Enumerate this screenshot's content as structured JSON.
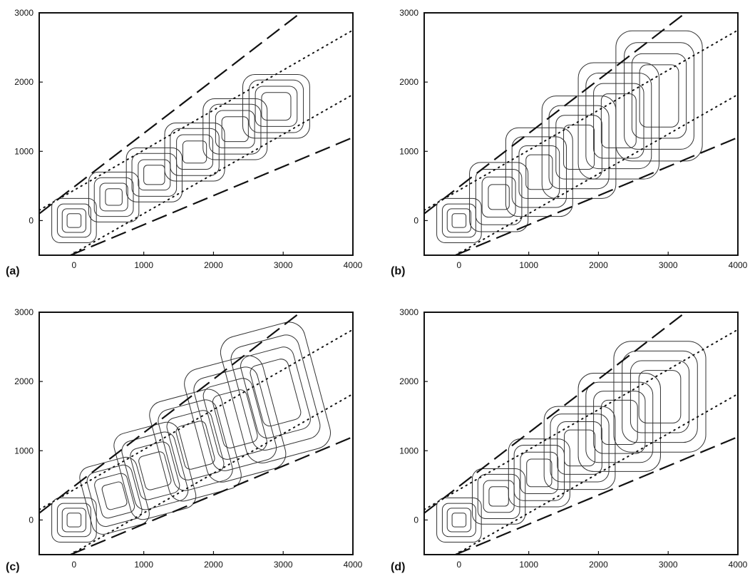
{
  "chart_data": [
    {
      "type": "contour",
      "panel_label": "(a)",
      "xlim": [
        -500,
        4000
      ],
      "ylim": [
        -500,
        3000
      ],
      "xticks": [
        "0",
        "1000",
        "2000",
        "3000",
        "4000"
      ],
      "yticks": [
        "0",
        "1000",
        "2000",
        "3000"
      ],
      "dashed_lines": [
        {
          "from": [
            -500,
            100
          ],
          "to": [
            3250,
            3000
          ]
        },
        {
          "from": [
            -50,
            -500
          ],
          "to": [
            4000,
            1200
          ]
        }
      ],
      "dotted_lines": [
        {
          "from": [
            -500,
            150
          ],
          "to": [
            4000,
            2750
          ]
        },
        {
          "from": [
            -50,
            -500
          ],
          "to": [
            4000,
            1820
          ]
        }
      ],
      "puffs": [
        {
          "x": 0,
          "y": 0,
          "rx": [
            100,
            170,
            240,
            320
          ],
          "ry": [
            100,
            170,
            240,
            320
          ],
          "rot": 0
        },
        {
          "x": 570,
          "y": 340,
          "rx": [
            120,
            200,
            280,
            360
          ],
          "ry": [
            120,
            200,
            280,
            360
          ],
          "rot": 0
        },
        {
          "x": 1150,
          "y": 660,
          "rx": [
            150,
            230,
            320,
            400
          ],
          "ry": [
            140,
            220,
            310,
            390
          ],
          "rot": 0
        },
        {
          "x": 1730,
          "y": 990,
          "rx": [
            170,
            260,
            350,
            430
          ],
          "ry": [
            160,
            250,
            340,
            420
          ],
          "rot": 0
        },
        {
          "x": 2310,
          "y": 1320,
          "rx": [
            190,
            280,
            370,
            460
          ],
          "ry": [
            180,
            270,
            360,
            440
          ],
          "rot": 0
        },
        {
          "x": 2900,
          "y": 1650,
          "rx": [
            210,
            300,
            390,
            480
          ],
          "ry": [
            200,
            290,
            380,
            460
          ],
          "rot": 0
        }
      ]
    },
    {
      "type": "contour",
      "panel_label": "(b)",
      "xlim": [
        -500,
        4000
      ],
      "ylim": [
        -500,
        3000
      ],
      "xticks": [
        "0",
        "1000",
        "2000",
        "3000",
        "4000"
      ],
      "yticks": [
        "0",
        "1000",
        "2000",
        "3000"
      ],
      "dashed_lines": [
        {
          "from": [
            -500,
            100
          ],
          "to": [
            3250,
            3000
          ]
        },
        {
          "from": [
            -50,
            -500
          ],
          "to": [
            4000,
            1200
          ]
        }
      ],
      "dotted_lines": [
        {
          "from": [
            -500,
            150
          ],
          "to": [
            4000,
            2750
          ]
        },
        {
          "from": [
            -50,
            -500
          ],
          "to": [
            4000,
            1820
          ]
        }
      ],
      "puffs": [
        {
          "x": 0,
          "y": 0,
          "rx": [
            100,
            170,
            240,
            320
          ],
          "ry": [
            100,
            170,
            240,
            320
          ],
          "rot": 0
        },
        {
          "x": 570,
          "y": 340,
          "rx": [
            150,
            240,
            330,
            420
          ],
          "ry": [
            180,
            290,
            400,
            500
          ],
          "rot": 0
        },
        {
          "x": 1150,
          "y": 700,
          "rx": [
            190,
            290,
            390,
            480
          ],
          "ry": [
            250,
            380,
            510,
            640
          ],
          "rot": 0
        },
        {
          "x": 1720,
          "y": 1060,
          "rx": [
            220,
            330,
            430,
            530
          ],
          "ry": [
            320,
            460,
            600,
            740
          ],
          "rot": 0
        },
        {
          "x": 2290,
          "y": 1440,
          "rx": [
            250,
            360,
            470,
            580
          ],
          "ry": [
            390,
            540,
            690,
            840
          ],
          "rot": 0
        },
        {
          "x": 2870,
          "y": 1800,
          "rx": [
            280,
            390,
            500,
            620
          ],
          "ry": [
            450,
            610,
            770,
            940
          ],
          "rot": 0
        }
      ]
    },
    {
      "type": "contour",
      "panel_label": "(c)",
      "xlim": [
        -500,
        4000
      ],
      "ylim": [
        -500,
        3000
      ],
      "xticks": [
        "0",
        "1000",
        "2000",
        "3000",
        "4000"
      ],
      "yticks": [
        "0",
        "1000",
        "2000",
        "3000"
      ],
      "dashed_lines": [
        {
          "from": [
            -500,
            100
          ],
          "to": [
            3250,
            3000
          ]
        },
        {
          "from": [
            -50,
            -500
          ],
          "to": [
            4000,
            1200
          ]
        }
      ],
      "dotted_lines": [
        {
          "from": [
            -500,
            150
          ],
          "to": [
            4000,
            2750
          ]
        },
        {
          "from": [
            -50,
            -500
          ],
          "to": [
            4000,
            1820
          ]
        }
      ],
      "puffs": [
        {
          "x": 0,
          "y": 0,
          "rx": [
            100,
            170,
            240,
            320
          ],
          "ry": [
            100,
            170,
            240,
            320
          ],
          "rot": 0
        },
        {
          "x": 580,
          "y": 350,
          "rx": [
            150,
            240,
            330,
            420
          ],
          "ry": [
            180,
            290,
            400,
            500
          ],
          "rot": -15
        },
        {
          "x": 1160,
          "y": 710,
          "rx": [
            190,
            290,
            390,
            480
          ],
          "ry": [
            250,
            380,
            510,
            640
          ],
          "rot": -15
        },
        {
          "x": 1740,
          "y": 1080,
          "rx": [
            220,
            330,
            430,
            530
          ],
          "ry": [
            320,
            460,
            600,
            740
          ],
          "rot": -15
        },
        {
          "x": 2310,
          "y": 1460,
          "rx": [
            250,
            360,
            470,
            580
          ],
          "ry": [
            390,
            540,
            690,
            840
          ],
          "rot": -15
        },
        {
          "x": 2890,
          "y": 1840,
          "rx": [
            280,
            390,
            500,
            620
          ],
          "ry": [
            450,
            610,
            770,
            940
          ],
          "rot": -15
        }
      ]
    },
    {
      "type": "contour",
      "panel_label": "(d)",
      "xlim": [
        -500,
        4000
      ],
      "ylim": [
        -500,
        3000
      ],
      "xticks": [
        "0",
        "1000",
        "2000",
        "3000",
        "4000"
      ],
      "yticks": [
        "0",
        "1000",
        "2000",
        "3000"
      ],
      "dashed_lines": [
        {
          "from": [
            -500,
            100
          ],
          "to": [
            3250,
            3000
          ]
        },
        {
          "from": [
            -50,
            -500
          ],
          "to": [
            4000,
            1200
          ]
        }
      ],
      "dotted_lines": [
        {
          "from": [
            -500,
            150
          ],
          "to": [
            4000,
            2750
          ]
        },
        {
          "from": [
            -50,
            -500
          ],
          "to": [
            4000,
            1820
          ]
        }
      ],
      "puffs": [
        {
          "x": 0,
          "y": 0,
          "rx": [
            100,
            170,
            240,
            320
          ],
          "ry": [
            100,
            170,
            240,
            320
          ],
          "rot": 0
        },
        {
          "x": 570,
          "y": 340,
          "rx": [
            140,
            220,
            300,
            380
          ],
          "ry": [
            140,
            230,
            320,
            400
          ],
          "rot": 0
        },
        {
          "x": 1150,
          "y": 680,
          "rx": [
            180,
            270,
            360,
            440
          ],
          "ry": [
            200,
            300,
            400,
            490
          ],
          "rot": 0
        },
        {
          "x": 1730,
          "y": 1040,
          "rx": [
            220,
            320,
            420,
            510
          ],
          "ry": [
            260,
            380,
            490,
            600
          ],
          "rot": 0
        },
        {
          "x": 2300,
          "y": 1410,
          "rx": [
            260,
            370,
            480,
            590
          ],
          "ry": [
            320,
            450,
            580,
            710
          ],
          "rot": 0
        },
        {
          "x": 2880,
          "y": 1780,
          "rx": [
            300,
            420,
            540,
            660
          ],
          "ry": [
            380,
            520,
            660,
            800
          ],
          "rot": 0
        }
      ]
    }
  ]
}
